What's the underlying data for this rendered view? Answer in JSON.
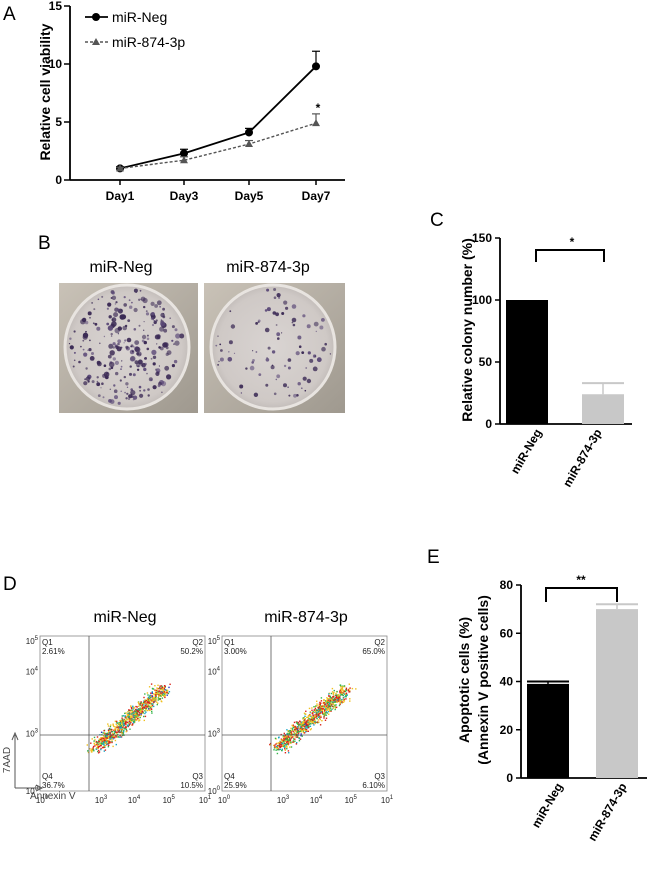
{
  "panels": {
    "A": {
      "letter": "A",
      "chart_data": {
        "type": "line",
        "categories": [
          "Day1",
          "Day3",
          "Day5",
          "Day7"
        ],
        "ylabel": "Relative cell viability",
        "ylim": [
          0,
          15
        ],
        "yticks": [
          "0",
          "5",
          "10",
          "15"
        ],
        "series": [
          {
            "name": "miR-Neg",
            "values": [
              1.0,
              2.3,
              4.1,
              9.8
            ],
            "errors": [
              0.15,
              0.35,
              0.35,
              1.3
            ],
            "style": "solid",
            "marker": "circle"
          },
          {
            "name": "miR-874-3p",
            "values": [
              1.0,
              1.7,
              3.1,
              4.9
            ],
            "errors": [
              0.1,
              0.3,
              0.3,
              0.8
            ],
            "style": "dashed",
            "marker": "triangle"
          }
        ],
        "annotations": [
          {
            "text": "*",
            "category": "Day7"
          }
        ],
        "legend_position": "top-left"
      }
    },
    "B": {
      "letter": "B",
      "labels": [
        "miR-Neg",
        "miR-874-3p"
      ]
    },
    "C": {
      "letter": "C",
      "chart_data": {
        "type": "bar",
        "categories": [
          "miR-Neg",
          "miR-874-3p"
        ],
        "values": [
          100,
          24
        ],
        "errors": [
          0,
          9
        ],
        "colors": [
          "#000000",
          "#c8c8c8"
        ],
        "ylabel": "Relative colony number (%)",
        "ylim": [
          0,
          150
        ],
        "yticks": [
          "0",
          "50",
          "100",
          "150"
        ],
        "significance": "*"
      }
    },
    "D": {
      "letter": "D",
      "plots": [
        {
          "title": "miR-Neg",
          "q1": "Q1",
          "q1_val": "2.61%",
          "q2": "Q2",
          "q2_val": "50.2%",
          "q3": "Q3",
          "q3_val": "10.5%",
          "q4": "Q4",
          "q4_val": "36.7%"
        },
        {
          "title": "miR-874-3p",
          "q1": "Q1",
          "q1_val": "3.00%",
          "q2": "Q2",
          "q2_val": "65.0%",
          "q3": "Q3",
          "q3_val": "6.10%",
          "q4": "Q4",
          "q4_val": "25.9%"
        }
      ],
      "x_axis": "Annexin V",
      "y_axis": "7AAD",
      "ticks": {
        "x": [
          {
            "base": "10",
            "exp": "0"
          },
          {
            "base": "10",
            "exp": "3"
          },
          {
            "base": "10",
            "exp": "4"
          },
          {
            "base": "10",
            "exp": "5"
          },
          {
            "base": "10",
            "exp": "1"
          }
        ],
        "y": [
          {
            "base": "10",
            "exp": "5"
          },
          {
            "base": "10",
            "exp": "4"
          },
          {
            "base": "10",
            "exp": "3"
          },
          {
            "base": "10",
            "exp": "0"
          }
        ]
      }
    },
    "E": {
      "letter": "E",
      "chart_data": {
        "type": "bar",
        "categories": [
          "miR-Neg",
          "miR-874-3p"
        ],
        "values": [
          39,
          70
        ],
        "errors": [
          1,
          2
        ],
        "colors": [
          "#000000",
          "#c8c8c8"
        ],
        "ylabel_line1": "Apoptotic cells (%)",
        "ylabel_line2": "(Annexin  V positive cells)",
        "ylim": [
          0,
          80
        ],
        "yticks": [
          "0",
          "20",
          "40",
          "60",
          "80"
        ],
        "significance": "**"
      }
    }
  }
}
